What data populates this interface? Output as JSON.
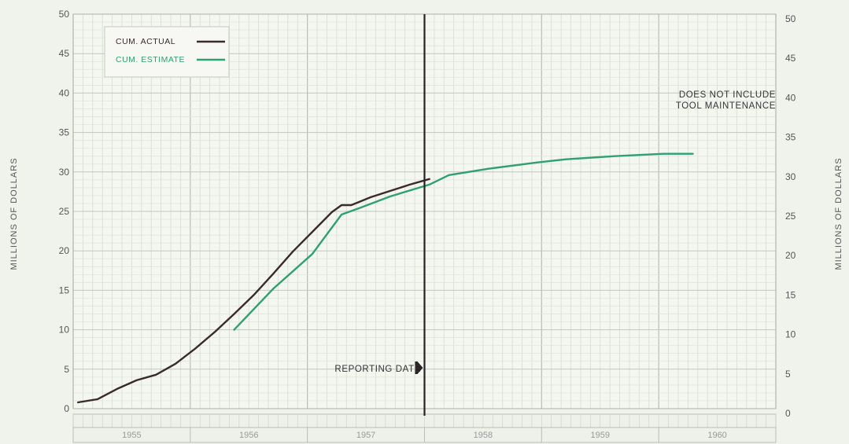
{
  "chart_data": {
    "type": "line",
    "ylabel_left": "MILLIONS OF DOLLARS",
    "ylabel_right": "MILLIONS OF DOLLARS",
    "ylim": [
      0,
      50
    ],
    "yticks": [
      0,
      5,
      10,
      15,
      20,
      25,
      30,
      35,
      40,
      45,
      50
    ],
    "xlim": [
      "1955-01",
      "1960-12"
    ],
    "years": [
      "1955",
      "1956",
      "1957",
      "1958",
      "1959",
      "1960"
    ],
    "grid": true,
    "legend_position": "top-left",
    "legend": [
      {
        "label": "CUM. ACTUAL",
        "color": "#3a2b2b"
      },
      {
        "label": "CUM. ESTIMATE",
        "color": "#2fa06e"
      }
    ],
    "series": [
      {
        "name": "CUM. ACTUAL",
        "color": "#3a2b2b",
        "x": [
          "1955-01",
          "1955-03",
          "1955-05",
          "1955-07",
          "1955-09",
          "1955-11",
          "1956-01",
          "1956-03",
          "1956-05",
          "1956-07",
          "1956-09",
          "1956-11",
          "1957-01",
          "1957-03",
          "1957-04",
          "1957-05",
          "1957-07",
          "1957-09",
          "1957-11",
          "1958-01"
        ],
        "values": [
          0.8,
          1.2,
          2.5,
          3.6,
          4.3,
          5.7,
          7.6,
          9.7,
          12.0,
          14.4,
          17.1,
          19.9,
          22.4,
          24.9,
          25.8,
          25.8,
          26.8,
          27.6,
          28.4,
          29.1
        ]
      },
      {
        "name": "CUM. ESTIMATE",
        "color": "#2fa06e",
        "x": [
          "1956-05",
          "1956-09",
          "1957-01",
          "1957-04",
          "1957-06",
          "1957-09",
          "1958-01",
          "1958-03",
          "1958-07",
          "1958-12",
          "1959-03",
          "1959-08",
          "1960-01",
          "1960-04"
        ],
        "values": [
          10.0,
          15.2,
          19.6,
          24.6,
          25.5,
          26.9,
          28.4,
          29.6,
          30.4,
          31.2,
          31.6,
          32.0,
          32.3,
          32.3
        ]
      }
    ],
    "annotations": {
      "reporting_date": {
        "label": "REPORTING DATE",
        "x": "1958-01"
      },
      "note": [
        "DOES NOT INCLUDE",
        "TOOL MAINTENANCE"
      ]
    }
  }
}
